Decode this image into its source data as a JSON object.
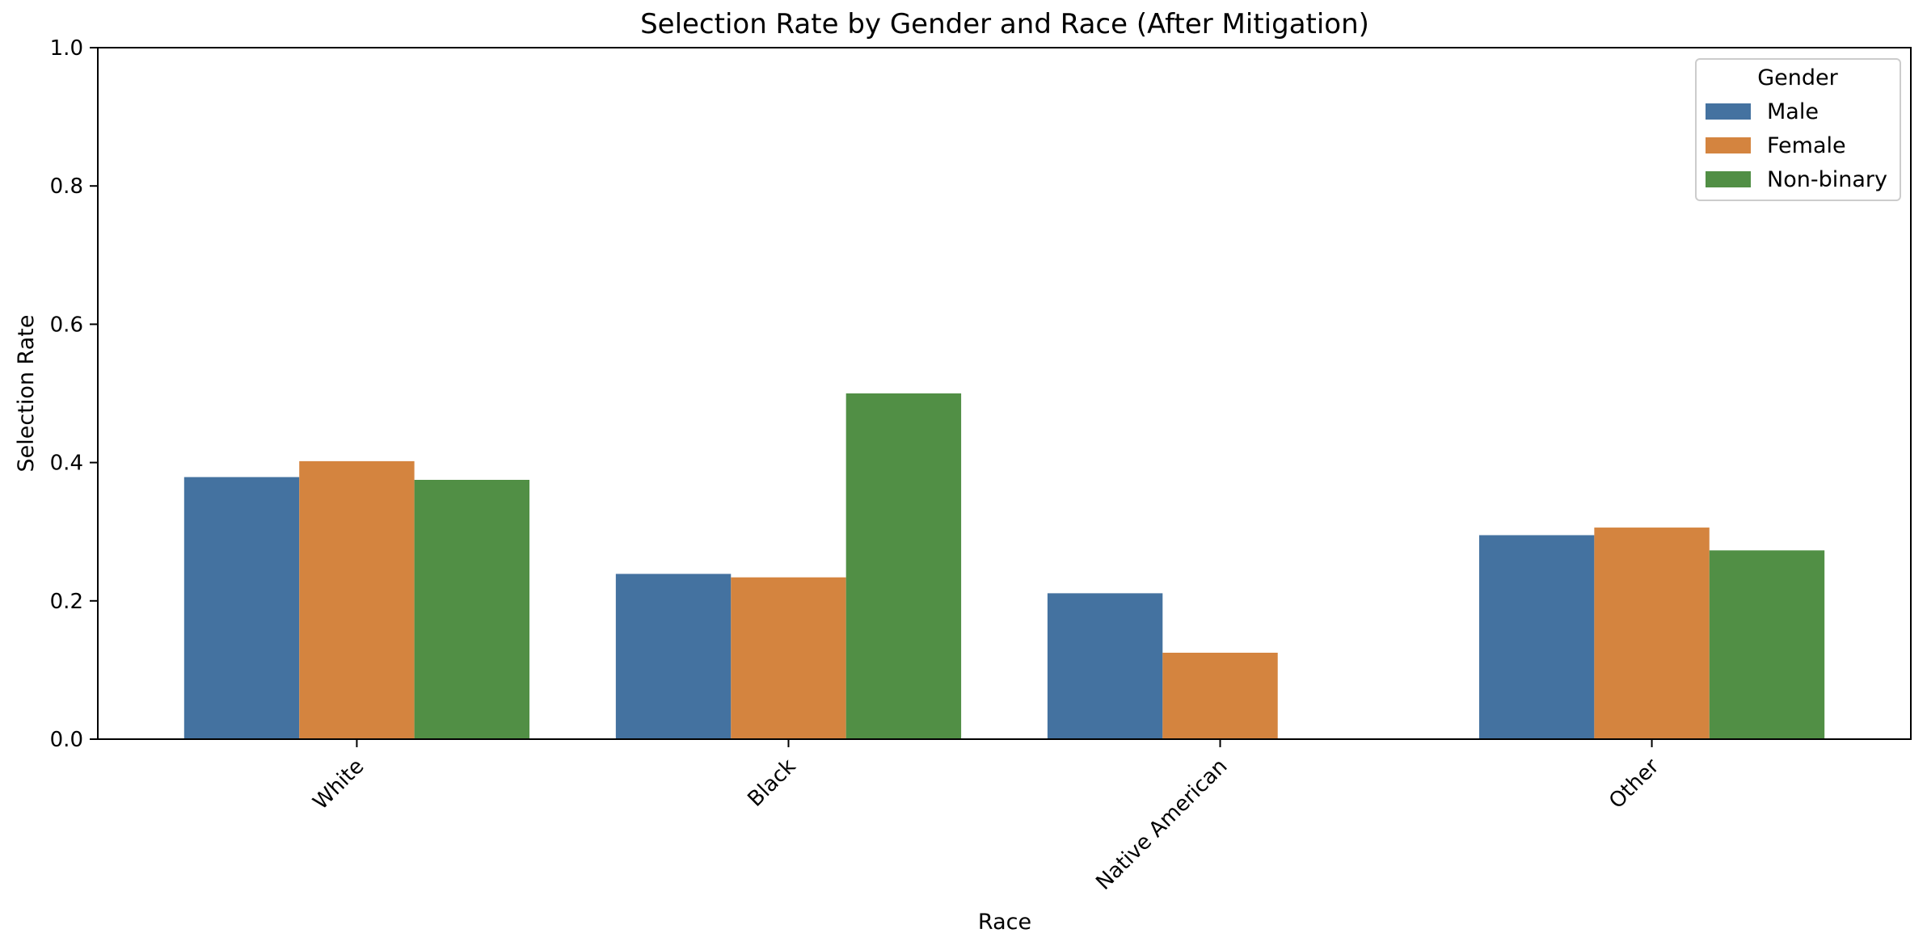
{
  "chart_data": {
    "type": "bar",
    "title": "Selection Rate by Gender and Race (After Mitigation)",
    "xlabel": "Race",
    "ylabel": "Selection Rate",
    "ylim": [
      0,
      1.0
    ],
    "yticks": [
      "0.0",
      "0.2",
      "0.4",
      "0.6",
      "0.8",
      "1.0"
    ],
    "categories": [
      "White",
      "Black",
      "Native American",
      "Other"
    ],
    "series": [
      {
        "name": "Male",
        "color": "#4472a0",
        "values": [
          0.379,
          0.239,
          0.211,
          0.295
        ]
      },
      {
        "name": "Female",
        "color": "#d4843f",
        "values": [
          0.402,
          0.234,
          0.125,
          0.306
        ]
      },
      {
        "name": "Non-binary",
        "color": "#518f45",
        "values": [
          0.375,
          0.5,
          null,
          0.273
        ]
      }
    ],
    "legend": {
      "title": "Gender",
      "position": "top-right"
    },
    "grid": false
  }
}
